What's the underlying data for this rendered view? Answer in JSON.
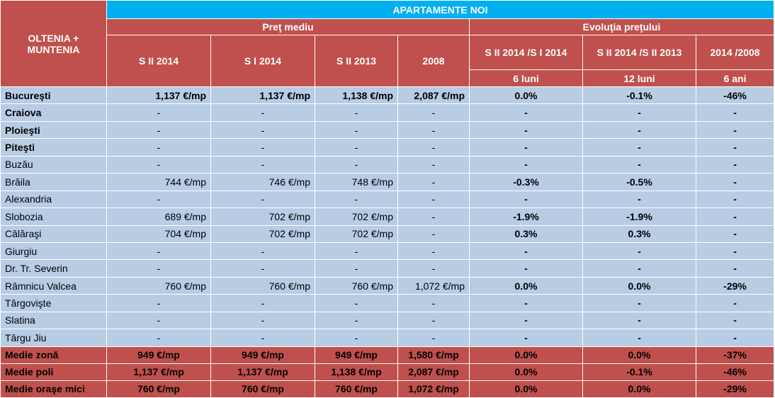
{
  "header": {
    "corner": "OLTENIA + MUNTENIA",
    "title": "APARTAMENTE NOI",
    "groups": [
      "Preţ mediu",
      "Evoluţia preţului"
    ],
    "columns": [
      "S II 2014",
      "S I 2014",
      "S II 2013",
      "2008",
      "S II 2014 /S I 2014",
      "S II 2014 /S II 2013",
      "2014 /2008"
    ],
    "periods": [
      "6 luni",
      "12 luni",
      "6 ani"
    ]
  },
  "table": {
    "rows": [
      [
        "Bucureşti",
        "1,137 €/mp",
        "1,137 €/mp",
        "1,138 €/mp",
        "2,087 €/mp",
        "0.0%",
        "-0.1%",
        "-46%"
      ],
      [
        "Craiova",
        "-",
        "-",
        "-",
        "-",
        "-",
        "-",
        "-"
      ],
      [
        "Ploieşti",
        "-",
        "-",
        "-",
        "-",
        "-",
        "-",
        "-"
      ],
      [
        "Piteşti",
        "-",
        "-",
        "-",
        "-",
        "-",
        "-",
        "-"
      ],
      [
        "Buzău",
        "-",
        "-",
        "-",
        "-",
        "-",
        "-",
        "-"
      ],
      [
        "Brăila",
        "744 €/mp",
        "746 €/mp",
        "748 €/mp",
        "-",
        "-0.3%",
        "-0.5%",
        "-"
      ],
      [
        "Alexandria",
        "-",
        "-",
        "-",
        "-",
        "-",
        "-",
        "-"
      ],
      [
        "Slobozia",
        "689 €/mp",
        "702 €/mp",
        "702 €/mp",
        "-",
        "-1.9%",
        "-1.9%",
        "-"
      ],
      [
        "Călăraşi",
        "704 €/mp",
        "702 €/mp",
        "702 €/mp",
        "-",
        "0.3%",
        "0.3%",
        "-"
      ],
      [
        "Giurgiu",
        "-",
        "-",
        "-",
        "-",
        "-",
        "-",
        "-"
      ],
      [
        "Dr. Tr. Severin",
        "-",
        "-",
        "-",
        "-",
        "-",
        "-",
        "-"
      ],
      [
        "Râmnicu Valcea",
        "760 €/mp",
        "760 €/mp",
        "760 €/mp",
        "1,072 €/mp",
        "0.0%",
        "0.0%",
        "-29%"
      ],
      [
        "Târgovişte",
        "-",
        "-",
        "-",
        "-",
        "-",
        "-",
        "-"
      ],
      [
        "Slatina",
        "-",
        "-",
        "-",
        "-",
        "-",
        "-",
        "-"
      ],
      [
        "Târgu Jiu",
        "-",
        "-",
        "-",
        "-",
        "-",
        "-",
        "-"
      ]
    ]
  },
  "summary": {
    "rows": [
      [
        "Medie zonă",
        "949 €/mp",
        "949 €/mp",
        "949 €/mp",
        "1,580 €/mp",
        "0.0%",
        "0.0%",
        "-37%"
      ],
      [
        "Medie poli",
        "1,137 €/mp",
        "1,137 €/mp",
        "1,138 €/mp",
        "2,087 €/mp",
        "0.0%",
        "-0.1%",
        "-46%"
      ],
      [
        "Medie oraşe mici",
        "760 €/mp",
        "760 €/mp",
        "760 €/mp",
        "1,072 €/mp",
        "0.0%",
        "0.0%",
        "-29%"
      ]
    ]
  }
}
